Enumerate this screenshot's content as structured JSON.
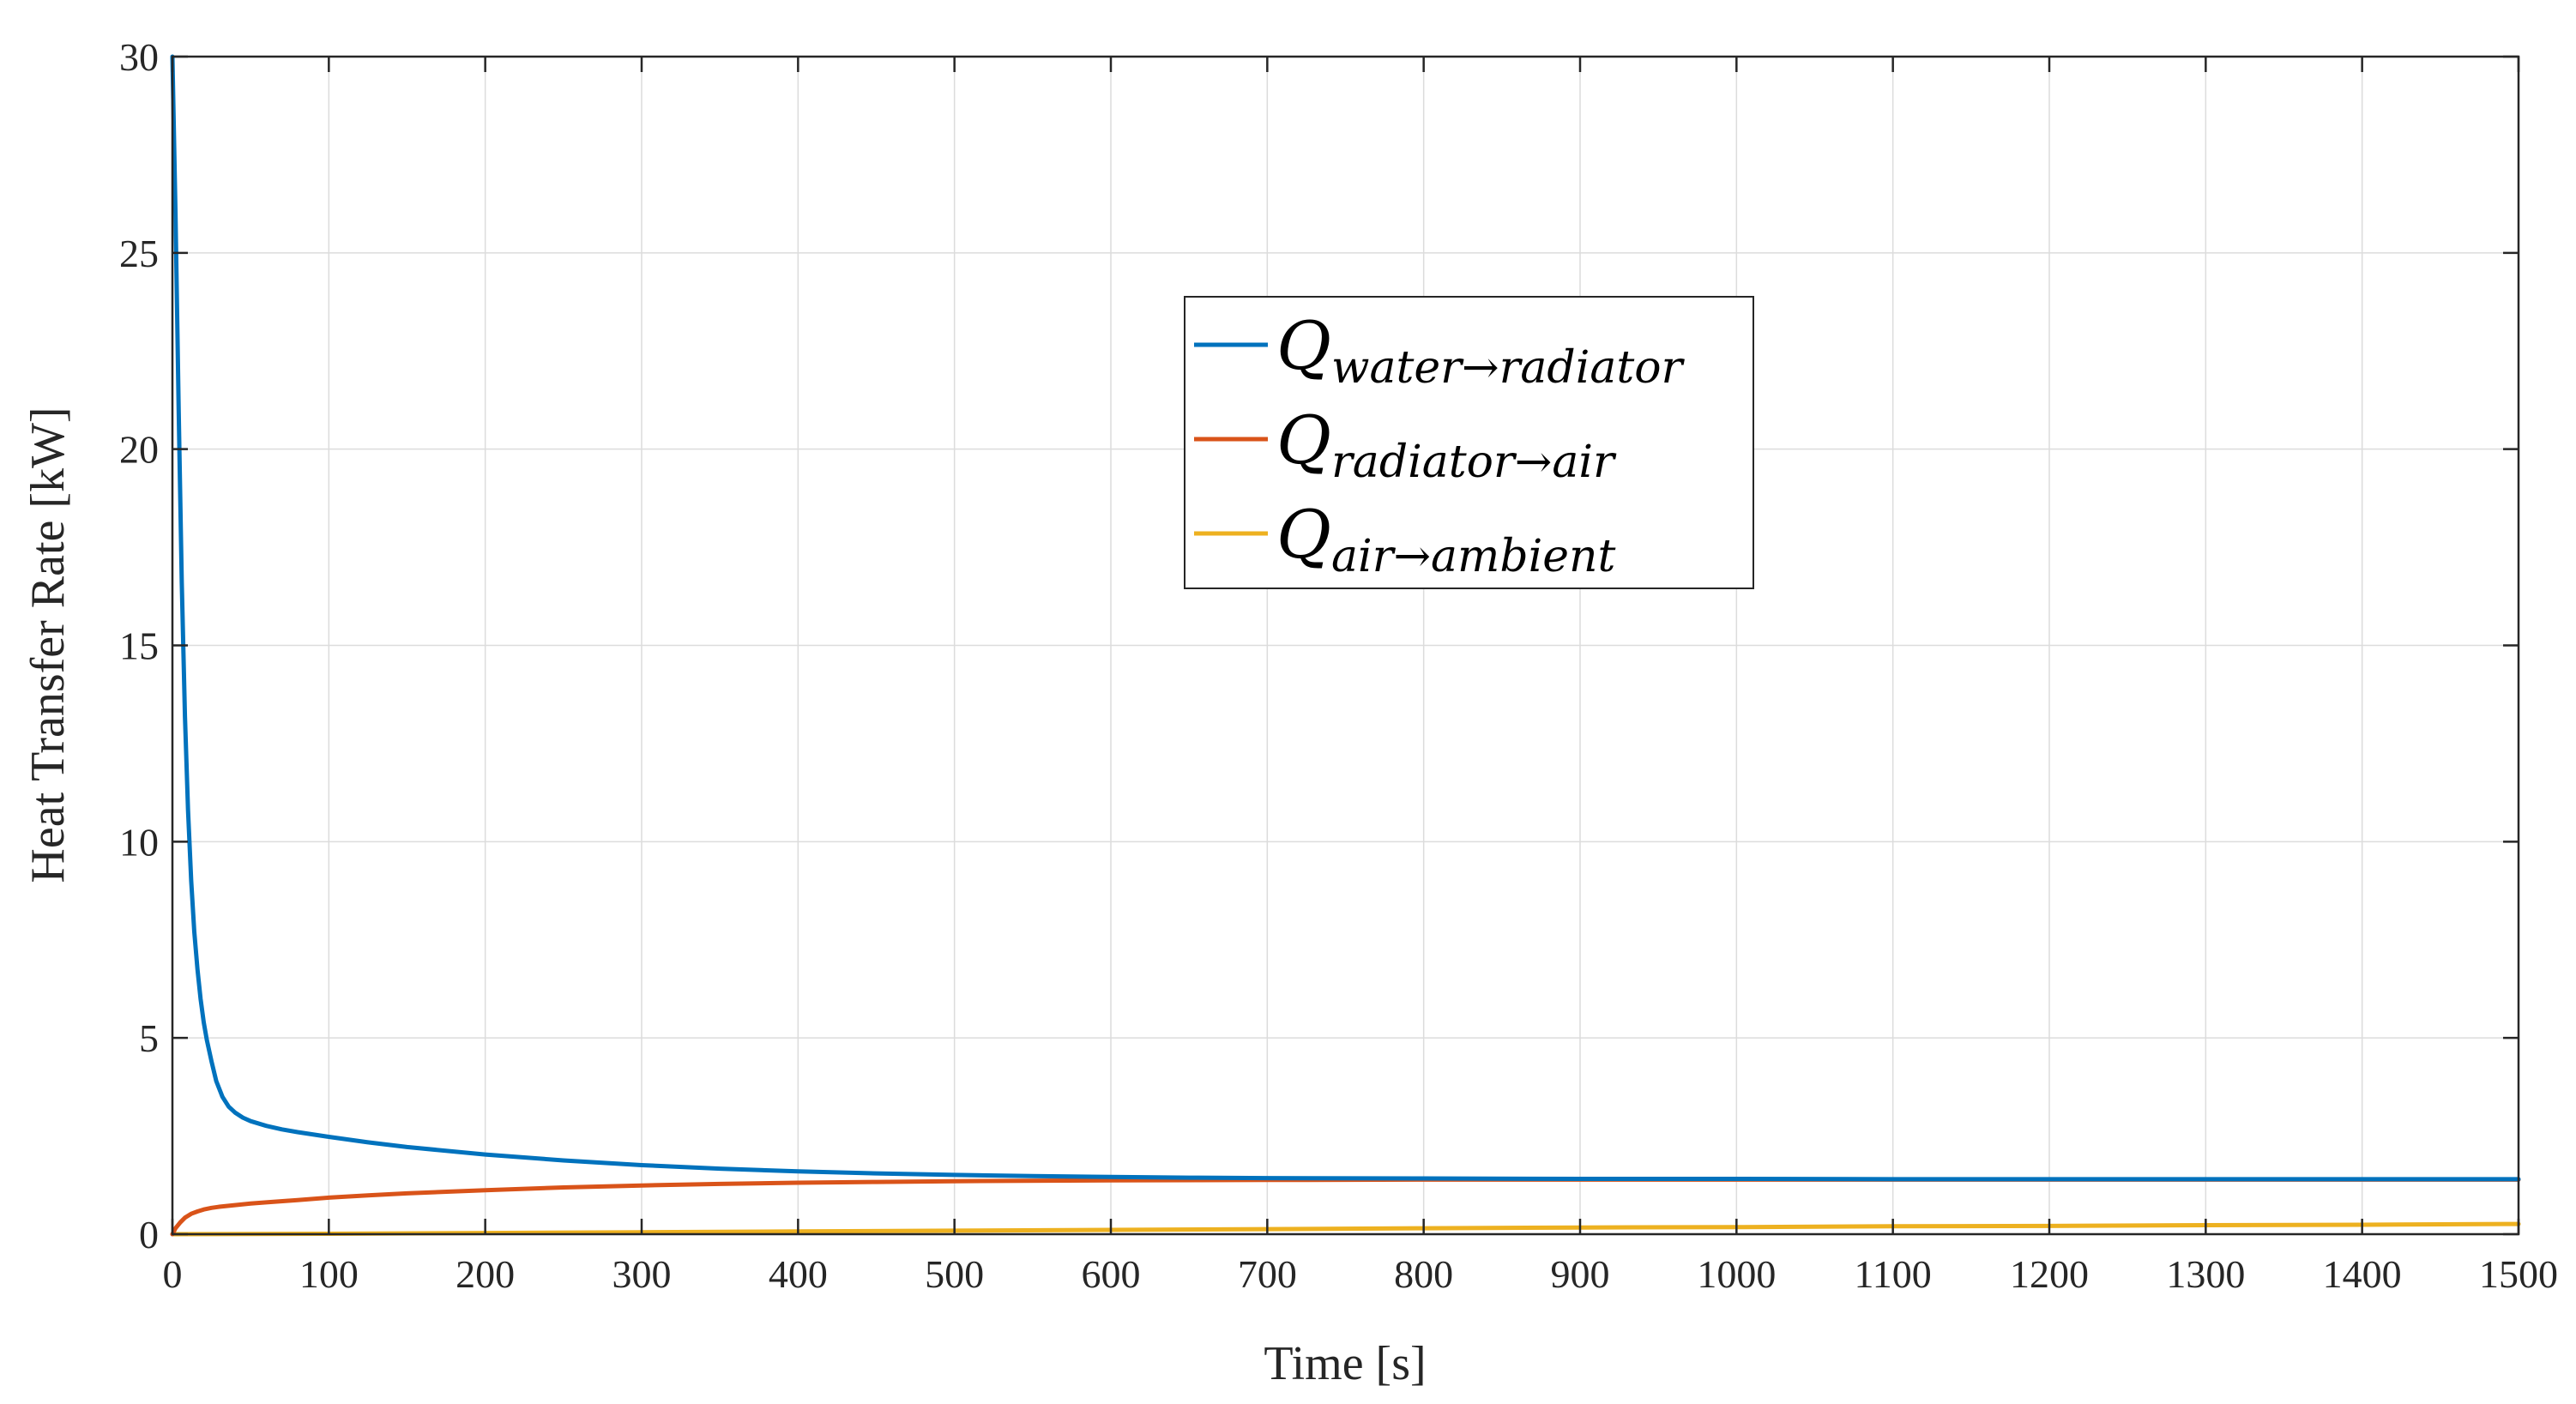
{
  "chart_data": {
    "type": "line",
    "title": "",
    "xlabel": "Time [s]",
    "ylabel": "Heat Transfer Rate [kW]",
    "xlim": [
      0,
      1500
    ],
    "ylim": [
      0,
      30
    ],
    "xticks": [
      0,
      100,
      200,
      300,
      400,
      500,
      600,
      700,
      800,
      900,
      1000,
      1100,
      1200,
      1300,
      1400,
      1500
    ],
    "yticks": [
      0,
      5,
      10,
      15,
      20,
      25,
      30
    ],
    "grid": true,
    "legend_position": "upper-center",
    "series": [
      {
        "name": "Q water→radiator",
        "symbol": "Q",
        "subscript": "water→radiator",
        "color": "#0072BD",
        "x": [
          0,
          2,
          4,
          6,
          8,
          10,
          12,
          14,
          16,
          18,
          20,
          22,
          25,
          28,
          32,
          36,
          40,
          45,
          50,
          60,
          70,
          80,
          100,
          125,
          150,
          200,
          250,
          300,
          350,
          400,
          450,
          500,
          550,
          600,
          650,
          700,
          800,
          900,
          1000,
          1100,
          1200,
          1300,
          1400,
          1500
        ],
        "y": [
          30.0,
          26.0,
          21.0,
          16.6,
          13.2,
          10.8,
          9.0,
          7.7,
          6.75,
          6.0,
          5.4,
          4.95,
          4.4,
          3.9,
          3.5,
          3.25,
          3.1,
          2.97,
          2.88,
          2.76,
          2.67,
          2.6,
          2.48,
          2.34,
          2.22,
          2.03,
          1.88,
          1.76,
          1.67,
          1.6,
          1.55,
          1.51,
          1.48,
          1.46,
          1.44,
          1.43,
          1.42,
          1.41,
          1.41,
          1.4,
          1.4,
          1.4,
          1.4,
          1.4
        ]
      },
      {
        "name": "Q radiator→air",
        "symbol": "Q",
        "subscript": "radiator→air",
        "color": "#D95319",
        "x": [
          0,
          2,
          5,
          8,
          12,
          16,
          20,
          25,
          30,
          40,
          50,
          60,
          80,
          100,
          125,
          150,
          200,
          250,
          300,
          350,
          400,
          450,
          500,
          600,
          700,
          800,
          900,
          1000,
          1100,
          1200,
          1300,
          1400,
          1500
        ],
        "y": [
          0.0,
          0.15,
          0.3,
          0.42,
          0.52,
          0.58,
          0.63,
          0.67,
          0.7,
          0.74,
          0.78,
          0.81,
          0.87,
          0.93,
          0.99,
          1.04,
          1.12,
          1.19,
          1.24,
          1.28,
          1.31,
          1.33,
          1.35,
          1.37,
          1.38,
          1.39,
          1.39,
          1.39,
          1.39,
          1.39,
          1.39,
          1.39,
          1.39
        ]
      },
      {
        "name": "Q air→ambient",
        "symbol": "Q",
        "subscript": "air→ambient",
        "color": "#EDB120",
        "x": [
          0,
          100,
          200,
          300,
          400,
          500,
          600,
          700,
          800,
          900,
          1000,
          1100,
          1200,
          1300,
          1400,
          1500
        ],
        "y": [
          0.0,
          0.01,
          0.03,
          0.05,
          0.07,
          0.09,
          0.11,
          0.13,
          0.15,
          0.17,
          0.18,
          0.2,
          0.21,
          0.23,
          0.24,
          0.26
        ]
      }
    ]
  }
}
